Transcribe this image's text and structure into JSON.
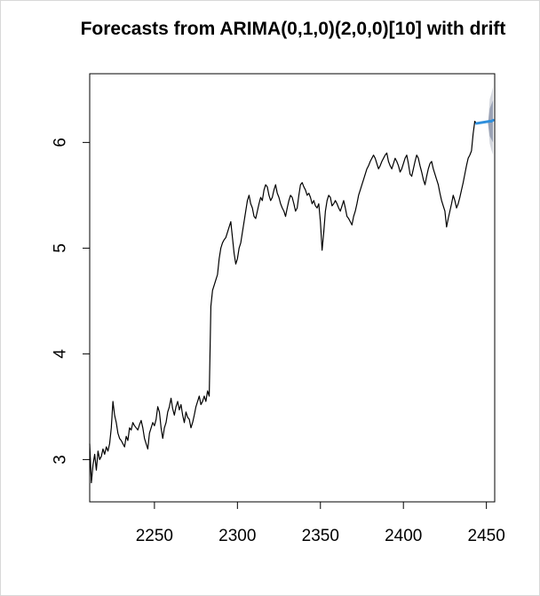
{
  "chart_data": {
    "type": "line",
    "title": "Forecasts from ARIMA(0,1,0)(2,0,0)[10] with drift",
    "xlabel": "",
    "ylabel": "",
    "xlim": [
      2211,
      2455
    ],
    "ylim": [
      2.6,
      6.65
    ],
    "x_ticks": [
      2250,
      2300,
      2350,
      2400,
      2450
    ],
    "y_ticks": [
      3,
      4,
      5,
      6
    ],
    "grid": false,
    "colors": {
      "series": "#000000",
      "forecast": "#2f8fdc",
      "band80": "#9aa2b5",
      "band95": "#d3d6dd"
    },
    "series": [
      {
        "name": "",
        "x_start": 2211,
        "x_step": 1,
        "values": [
          3.15,
          2.78,
          2.95,
          3.05,
          2.9,
          3.08,
          3.0,
          3.03,
          3.1,
          3.05,
          3.12,
          3.08,
          3.15,
          3.3,
          3.55,
          3.42,
          3.35,
          3.25,
          3.2,
          3.18,
          3.15,
          3.12,
          3.22,
          3.18,
          3.3,
          3.28,
          3.35,
          3.32,
          3.3,
          3.28,
          3.33,
          3.37,
          3.3,
          3.2,
          3.15,
          3.1,
          3.25,
          3.3,
          3.35,
          3.32,
          3.38,
          3.5,
          3.45,
          3.3,
          3.2,
          3.3,
          3.35,
          3.45,
          3.5,
          3.58,
          3.48,
          3.42,
          3.5,
          3.55,
          3.47,
          3.52,
          3.42,
          3.35,
          3.45,
          3.4,
          3.38,
          3.3,
          3.35,
          3.42,
          3.5,
          3.55,
          3.6,
          3.52,
          3.55,
          3.6,
          3.55,
          3.65,
          3.6,
          4.45,
          4.6,
          4.65,
          4.7,
          4.75,
          4.9,
          5.0,
          5.05,
          5.08,
          5.1,
          5.15,
          5.2,
          5.25,
          5.1,
          4.95,
          4.85,
          4.9,
          5.0,
          5.05,
          5.15,
          5.25,
          5.35,
          5.45,
          5.5,
          5.42,
          5.38,
          5.3,
          5.28,
          5.35,
          5.42,
          5.48,
          5.45,
          5.55,
          5.6,
          5.58,
          5.5,
          5.45,
          5.48,
          5.55,
          5.6,
          5.52,
          5.48,
          5.42,
          5.38,
          5.35,
          5.3,
          5.38,
          5.45,
          5.5,
          5.48,
          5.42,
          5.35,
          5.38,
          5.5,
          5.6,
          5.62,
          5.58,
          5.55,
          5.5,
          5.52,
          5.48,
          5.42,
          5.45,
          5.4,
          5.38,
          5.42,
          5.25,
          4.98,
          5.15,
          5.35,
          5.45,
          5.5,
          5.48,
          5.4,
          5.42,
          5.45,
          5.42,
          5.38,
          5.35,
          5.4,
          5.45,
          5.38,
          5.3,
          5.28,
          5.25,
          5.22,
          5.3,
          5.35,
          5.42,
          5.5,
          5.55,
          5.6,
          5.65,
          5.7,
          5.75,
          5.78,
          5.82,
          5.85,
          5.88,
          5.85,
          5.8,
          5.75,
          5.78,
          5.82,
          5.85,
          5.88,
          5.9,
          5.82,
          5.78,
          5.75,
          5.8,
          5.85,
          5.82,
          5.78,
          5.72,
          5.75,
          5.8,
          5.85,
          5.88,
          5.8,
          5.7,
          5.68,
          5.75,
          5.82,
          5.88,
          5.85,
          5.78,
          5.72,
          5.65,
          5.6,
          5.68,
          5.75,
          5.8,
          5.82,
          5.75,
          5.7,
          5.65,
          5.6,
          5.52,
          5.45,
          5.4,
          5.35,
          5.2,
          5.28,
          5.35,
          5.42,
          5.5,
          5.45,
          5.38,
          5.42,
          5.48,
          5.55,
          5.62,
          5.7,
          5.78,
          5.85,
          5.88,
          5.92,
          6.08,
          6.2,
          6.18
        ]
      },
      {
        "name": "",
        "x": [
          2452,
          2453,
          2454
        ],
        "values": [
          6.2,
          6.2,
          6.21
        ]
      }
    ],
    "intervals": {
      "x": [
        2451,
        2452,
        2453,
        2454
      ],
      "lower80": [
        6.18,
        6.06,
        6.03,
        6.0
      ],
      "upper80": [
        6.18,
        6.32,
        6.36,
        6.4
      ],
      "lower95": [
        6.18,
        5.99,
        5.93,
        5.88
      ],
      "upper95": [
        6.18,
        6.41,
        6.46,
        6.53
      ]
    }
  }
}
